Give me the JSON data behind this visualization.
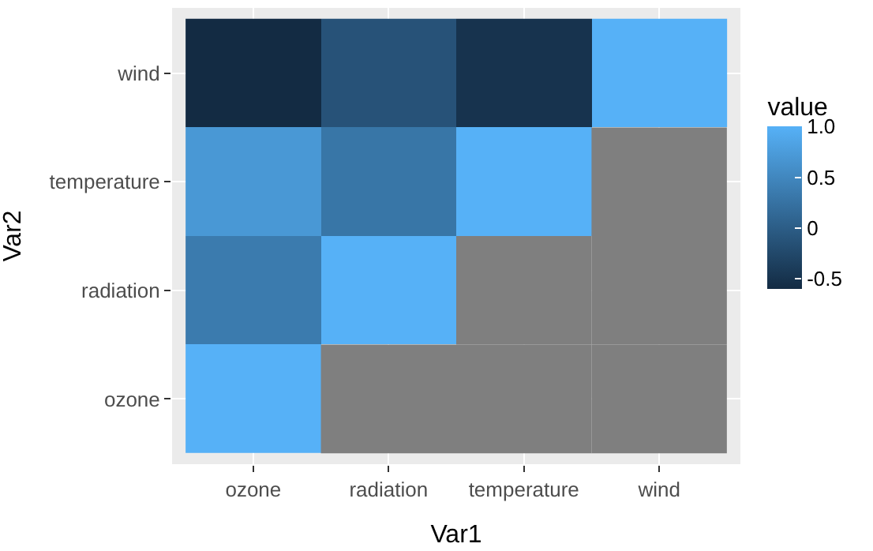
{
  "chart_data": {
    "type": "heatmap",
    "xlabel": "Var1",
    "ylabel": "Var2",
    "clabel": "value",
    "categories": [
      "ozone",
      "radiation",
      "temperature",
      "wind"
    ],
    "y_categories": [
      "wind",
      "temperature",
      "radiation",
      "ozone"
    ],
    "cells": [
      [
        -0.6,
        -0.13,
        -0.5,
        1
      ],
      [
        0.7,
        0.29,
        1,
        null
      ],
      [
        0.35,
        1,
        null,
        null
      ],
      [
        1,
        null,
        null,
        null
      ]
    ],
    "clim": [
      -0.6,
      1
    ],
    "cticks": [
      -0.5,
      0,
      0.5,
      {
        "value": 1,
        "label": "1.0"
      }
    ],
    "grid": true
  }
}
